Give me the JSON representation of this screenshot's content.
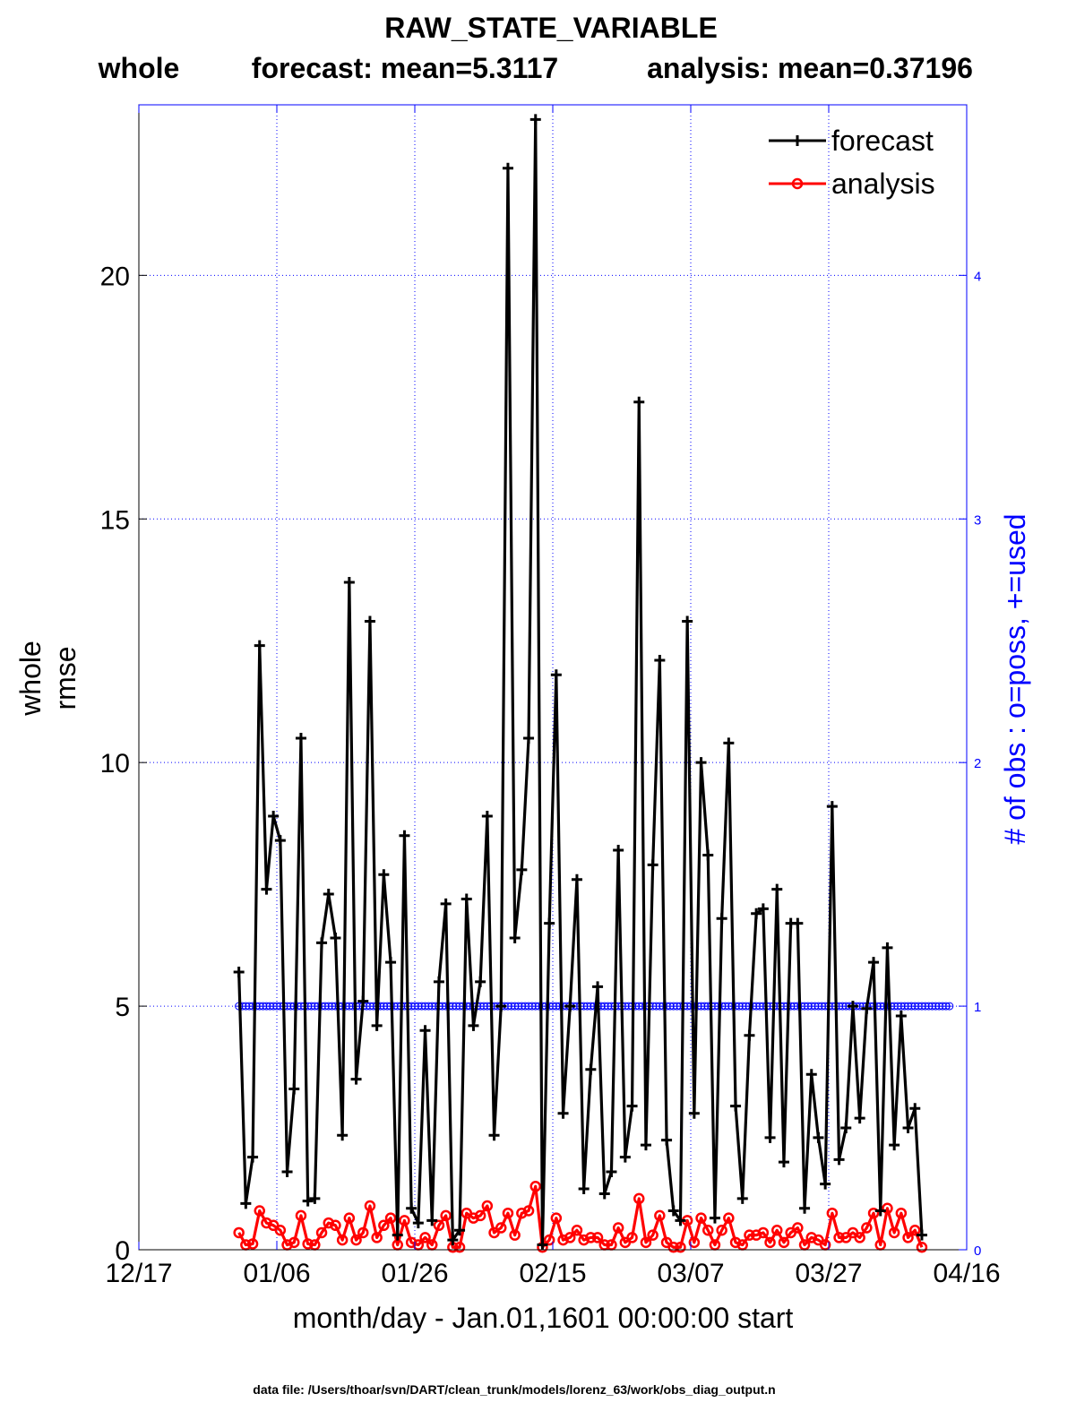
{
  "chart_data": {
    "type": "line",
    "title": "RAW_STATE_VARIABLE",
    "subtitle": {
      "region": "whole",
      "forecast_mean": "forecast: mean=5.3117",
      "analysis_mean": "analysis: mean=0.37196"
    },
    "xlabel": "month/day - Jan.01,1601 00:00:00 start",
    "ylabel_line1": "whole",
    "ylabel_line2": "rmse",
    "y2label": "# of obs : o=poss, +=used",
    "footer": "data file: /Users/thoar/svn/DART/clean_trunk/models/lorenz_63/work/obs_diag_output.n",
    "xlim": [
      0,
      120
    ],
    "ylim": [
      0,
      23.5
    ],
    "y2lim": [
      0,
      4.7
    ],
    "xticks": [
      {
        "value": 0,
        "label": "12/17"
      },
      {
        "value": 20,
        "label": "01/06"
      },
      {
        "value": 40,
        "label": "01/26"
      },
      {
        "value": 60,
        "label": "02/15"
      },
      {
        "value": 80,
        "label": "03/07"
      },
      {
        "value": 100,
        "label": "03/27"
      },
      {
        "value": 120,
        "label": "04/16"
      }
    ],
    "yticks": [
      {
        "value": 0,
        "label": "0"
      },
      {
        "value": 5,
        "label": "5"
      },
      {
        "value": 10,
        "label": "10"
      },
      {
        "value": 15,
        "label": "15"
      },
      {
        "value": 20,
        "label": "20"
      }
    ],
    "y2ticks": [
      {
        "value": 0,
        "label": "0"
      },
      {
        "value": 1,
        "label": "1"
      },
      {
        "value": 2,
        "label": "2"
      },
      {
        "value": 3,
        "label": "3"
      },
      {
        "value": 4,
        "label": "4"
      }
    ],
    "legend_position": "top-right",
    "grid": true,
    "x_start": 14.5,
    "x_step": 1,
    "series": [
      {
        "name": "forecast",
        "color": "#000000",
        "marker": "plus",
        "values": [
          5.7,
          0.95,
          1.9,
          12.4,
          7.4,
          8.9,
          8.4,
          1.6,
          3.3,
          10.5,
          1.0,
          1.05,
          6.3,
          7.3,
          6.4,
          2.35,
          13.7,
          3.5,
          5.1,
          12.9,
          4.6,
          7.7,
          5.9,
          0.3,
          8.5,
          0.85,
          0.55,
          4.5,
          0.6,
          5.5,
          7.1,
          0.2,
          0.4,
          7.2,
          4.6,
          5.5,
          8.9,
          2.35,
          5.0,
          22.2,
          6.4,
          7.8,
          10.5,
          23.2,
          0.1,
          6.7,
          11.8,
          2.8,
          5.0,
          7.6,
          1.25,
          3.7,
          5.4,
          1.15,
          1.6,
          8.2,
          1.9,
          2.95,
          17.4,
          2.15,
          7.9,
          12.1,
          2.25,
          0.8,
          0.6,
          12.9,
          2.8,
          10.0,
          8.1,
          0.65,
          6.8,
          10.4,
          2.95,
          1.05,
          4.4,
          6.9,
          7.0,
          2.3,
          7.4,
          1.8,
          6.7,
          6.7,
          0.85,
          3.6,
          2.3,
          1.35,
          9.1,
          1.85,
          2.5,
          5.0,
          2.7,
          4.95,
          5.9,
          0.8,
          6.2,
          2.15,
          4.8,
          2.5,
          2.9,
          0.3
        ]
      },
      {
        "name": "analysis",
        "color": "#ff0000",
        "marker": "circle",
        "values": [
          0.35,
          0.1,
          0.12,
          0.8,
          0.55,
          0.5,
          0.4,
          0.1,
          0.15,
          0.7,
          0.12,
          0.1,
          0.35,
          0.55,
          0.5,
          0.2,
          0.65,
          0.2,
          0.35,
          0.9,
          0.25,
          0.5,
          0.65,
          0.1,
          0.6,
          0.15,
          0.1,
          0.25,
          0.1,
          0.5,
          0.7,
          0.05,
          0.05,
          0.75,
          0.65,
          0.7,
          0.9,
          0.35,
          0.45,
          0.75,
          0.3,
          0.75,
          0.8,
          1.3,
          0.05,
          0.2,
          0.65,
          0.2,
          0.25,
          0.4,
          0.2,
          0.25,
          0.25,
          0.1,
          0.1,
          0.45,
          0.15,
          0.25,
          1.05,
          0.15,
          0.3,
          0.7,
          0.15,
          0.05,
          0.05,
          0.6,
          0.15,
          0.65,
          0.4,
          0.1,
          0.4,
          0.65,
          0.15,
          0.1,
          0.3,
          0.3,
          0.35,
          0.15,
          0.4,
          0.15,
          0.35,
          0.45,
          0.1,
          0.25,
          0.2,
          0.1,
          0.75,
          0.25,
          0.25,
          0.35,
          0.25,
          0.45,
          0.75,
          0.1,
          0.85,
          0.35,
          0.75,
          0.25,
          0.4,
          0.05
        ]
      },
      {
        "name": "obs possible",
        "color": "#0000ff",
        "marker": "circle",
        "axis": "right",
        "constant": 1,
        "x_start": 14.5,
        "x_end": 117.5,
        "x_step": 0.5
      },
      {
        "name": "obs used",
        "color": "#0000ff",
        "marker": "plus",
        "axis": "right",
        "constant": 1,
        "x_start": 14.5,
        "x_end": 117.5,
        "x_step": 0.5
      }
    ]
  }
}
